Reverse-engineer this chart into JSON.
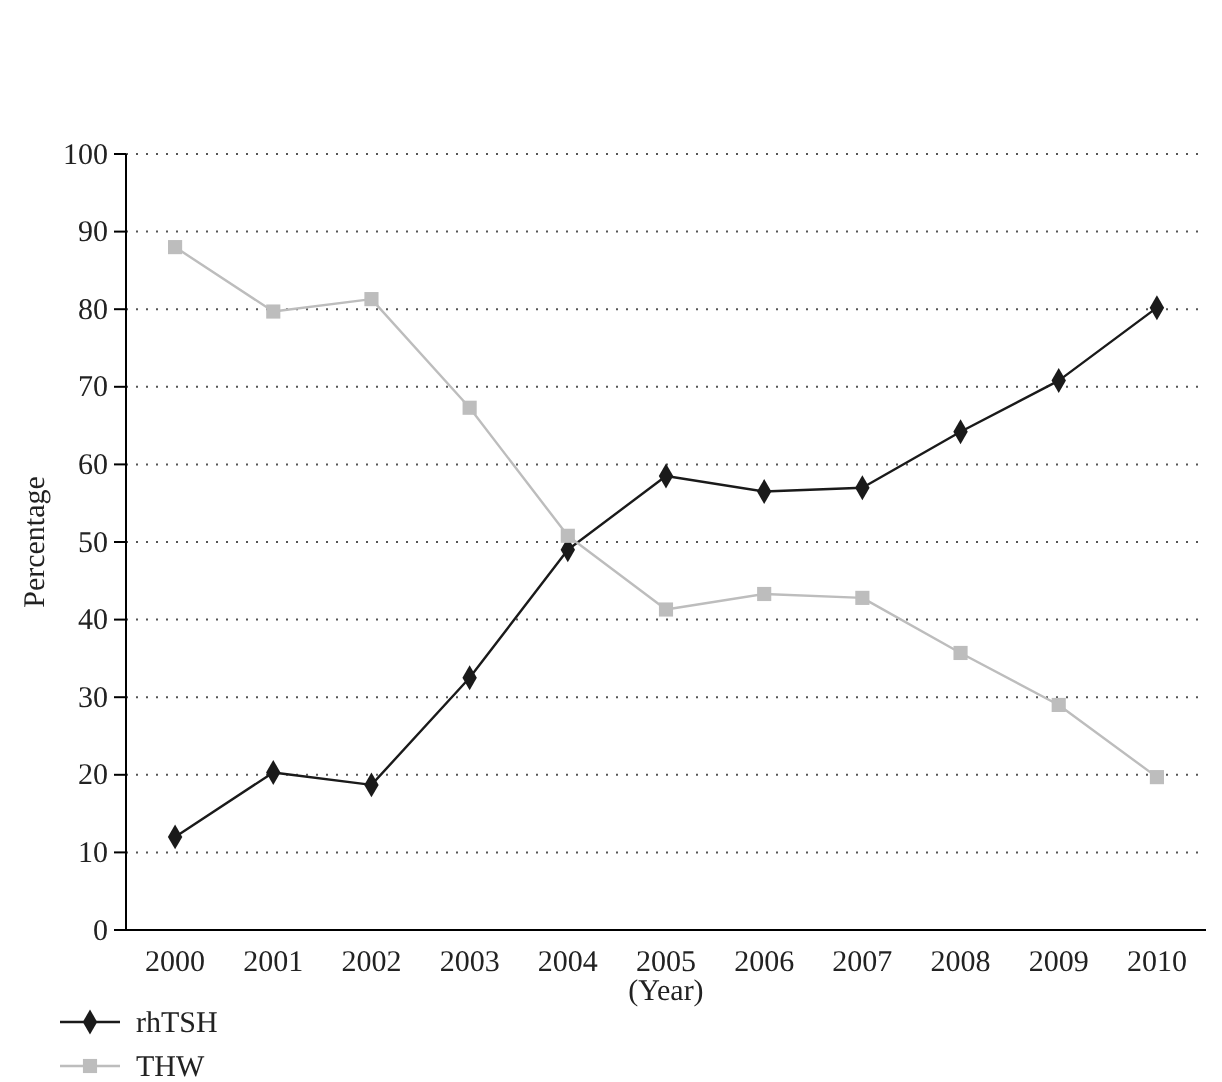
{
  "chart_data": {
    "type": "line",
    "xlabel": "(Year)",
    "ylabel": "Percentage",
    "categories": [
      "2000",
      "2001",
      "2002",
      "2003",
      "2004",
      "2005",
      "2006",
      "2007",
      "2008",
      "2009",
      "2010"
    ],
    "series": [
      {
        "name": "rhTSH",
        "color": "#1a1a1a",
        "marker": "diamond",
        "values": [
          12,
          20.3,
          18.7,
          32.5,
          49,
          58.5,
          56.5,
          57,
          64.2,
          70.8,
          80.2
        ]
      },
      {
        "name": "THW",
        "color": "#bdbdbd",
        "marker": "square",
        "values": [
          88,
          79.7,
          81.3,
          67.3,
          50.8,
          41.3,
          43.3,
          42.8,
          35.7,
          29,
          19.7
        ]
      }
    ],
    "ylim": [
      0,
      100
    ],
    "yticks": [
      0,
      10,
      20,
      30,
      40,
      50,
      60,
      70,
      80,
      90,
      100
    ],
    "grid": "y",
    "legend": "bottom left",
    "line_style": "solid"
  }
}
